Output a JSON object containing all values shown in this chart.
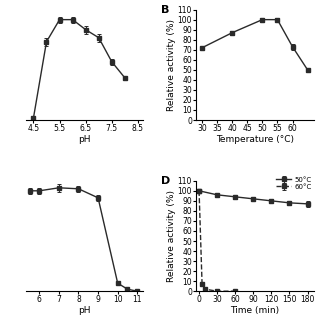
{
  "panel_A": {
    "x": [
      4.5,
      5.0,
      5.5,
      6.0,
      6.5,
      7.0,
      7.5,
      8.0
    ],
    "y": [
      2,
      78,
      100,
      100,
      90,
      82,
      58,
      42
    ],
    "yerr": [
      2,
      4,
      3,
      3,
      4,
      4,
      3,
      2
    ],
    "xlabel": "pH",
    "xlim": [
      4.2,
      8.7
    ],
    "ylim": [
      0,
      110
    ],
    "xticks": [
      4.5,
      5.5,
      6.5,
      7.5,
      8.5
    ]
  },
  "panel_B": {
    "label": "B",
    "x": [
      30,
      40,
      50,
      55,
      60,
      65
    ],
    "y": [
      72,
      87,
      100,
      100,
      73,
      50
    ],
    "yerr": [
      2,
      2,
      2,
      2,
      3,
      2
    ],
    "xlabel": "Temperature (°C)",
    "ylabel": "Relative activity (%)",
    "xlim": [
      28,
      67
    ],
    "ylim": [
      0,
      110
    ],
    "xticks": [
      30,
      35,
      40,
      45,
      50,
      55,
      60
    ],
    "yticks": [
      0,
      10,
      20,
      30,
      40,
      50,
      60,
      70,
      80,
      90,
      100,
      110
    ]
  },
  "panel_C": {
    "x": [
      5.5,
      6.0,
      7.0,
      8.0,
      9.0,
      10.0,
      10.5,
      11.0
    ],
    "y": [
      100,
      100,
      103,
      102,
      93,
      8,
      2,
      0
    ],
    "yerr": [
      3,
      3,
      4,
      3,
      3,
      1,
      1,
      0
    ],
    "xlabel": "pH",
    "xlim": [
      5.3,
      11.3
    ],
    "ylim": [
      0,
      110
    ],
    "xticks": [
      6,
      7,
      8,
      9,
      10,
      11
    ]
  },
  "panel_D": {
    "label": "D",
    "x_50": [
      0,
      30,
      60,
      90,
      120,
      150,
      180
    ],
    "y_50": [
      100,
      96,
      94,
      92,
      90,
      88,
      87
    ],
    "yerr_50": [
      2,
      2,
      2,
      2,
      2,
      2,
      3
    ],
    "x_60": [
      0,
      5,
      10,
      30,
      60
    ],
    "y_60": [
      100,
      7,
      2,
      0,
      0
    ],
    "yerr_60": [
      2,
      2,
      1,
      0,
      0
    ],
    "xlabel": "Time (min)",
    "ylabel": "Relative activity (%)",
    "xlim": [
      -5,
      190
    ],
    "ylim": [
      0,
      110
    ],
    "xticks": [
      0,
      30,
      60,
      90,
      120,
      150,
      180
    ],
    "yticks": [
      0,
      10,
      20,
      30,
      40,
      50,
      60,
      70,
      80,
      90,
      100,
      110
    ],
    "legend_50": "50°C",
    "legend_60": "60°C"
  },
  "marker": "s",
  "markersize": 3.5,
  "linewidth": 1.0,
  "color": "#2a2a2a",
  "tick_fontsize": 5.5,
  "axis_label_fontsize": 6.5,
  "panel_label_fontsize": 8
}
